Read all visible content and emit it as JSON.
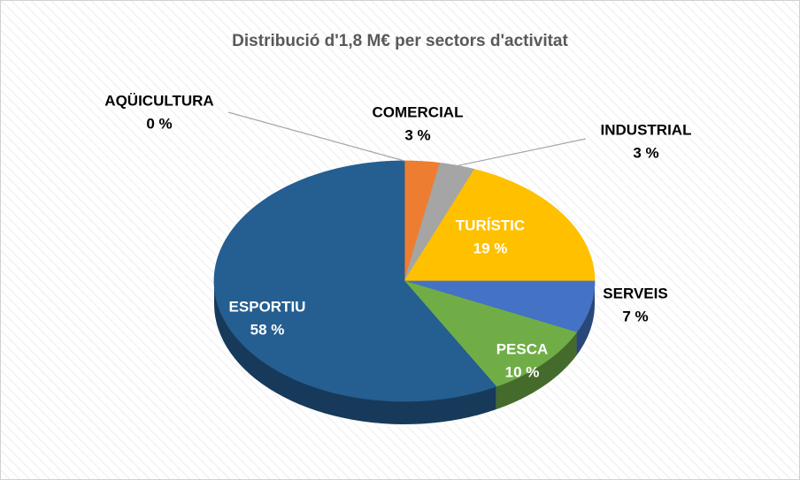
{
  "chart_data": {
    "type": "pie3d",
    "title": "Distribució d'1,8 M€ per sectors d'activitat",
    "categories": [
      "AQÜICULTURA",
      "COMERCIAL",
      "INDUSTRIAL",
      "TURÍSTIC",
      "SERVEIS",
      "PESCA",
      "ESPORTIU"
    ],
    "values": [
      0,
      3,
      3,
      19,
      7,
      10,
      58
    ],
    "value_labels": [
      "0 %",
      "3 %",
      "3 %",
      "19 %",
      "7 %",
      "10 %",
      "58 %"
    ],
    "colors": [
      "#5b9bd5",
      "#ed7d31",
      "#a5a5a5",
      "#ffc000",
      "#4472c4",
      "#70ad47",
      "#255e91"
    ]
  }
}
